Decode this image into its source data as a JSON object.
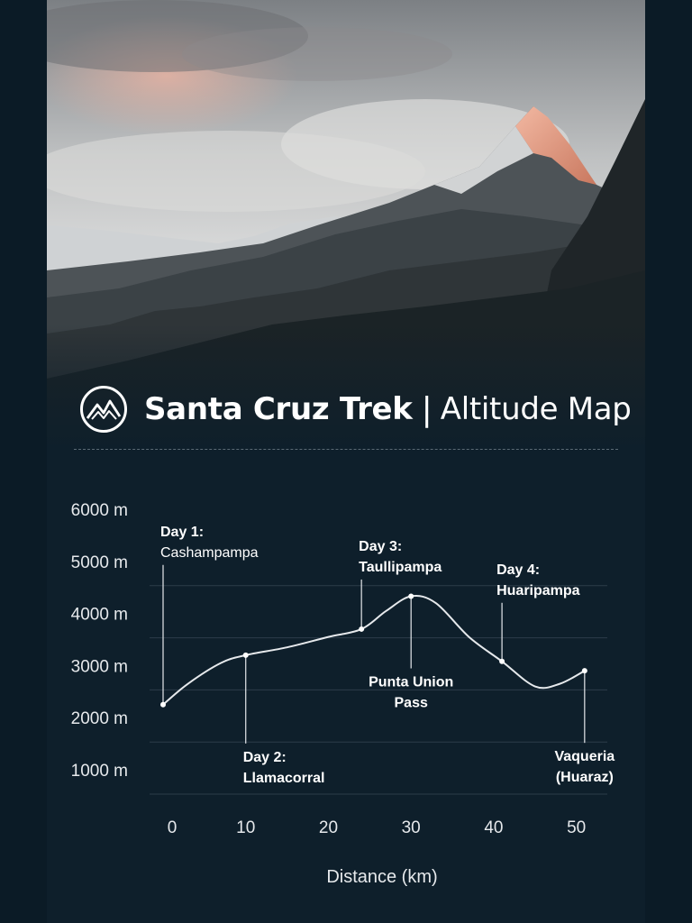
{
  "header": {
    "title_main": "Santa Cruz Trek",
    "separator": "|",
    "title_sub": "Altitude Map",
    "logo_icon": "mountain-logo-icon"
  },
  "colors": {
    "background": "#0e1f2b",
    "line": "#e6e9ec",
    "grid": "#2c3d4a",
    "text": "#e6e9ec",
    "label": "#ffffff"
  },
  "chart_data": {
    "type": "line",
    "xlabel": "Distance (km)",
    "ylabel": "",
    "x_ticks": [
      0,
      10,
      20,
      30,
      40,
      50
    ],
    "y_ticks": [
      "1000 m",
      "2000 m",
      "3000 m",
      "4000 m",
      "5000 m",
      "6000 m"
    ],
    "xlim": [
      0,
      52
    ],
    "ylim": [
      1000,
      6000
    ],
    "grid": true,
    "series": [
      {
        "x": [
          0,
          3,
          7,
          10,
          15,
          20,
          24,
          27,
          30,
          33,
          37,
          41,
          45,
          48,
          51
        ],
        "y": [
          2250,
          2650,
          3050,
          3200,
          3350,
          3550,
          3700,
          4050,
          4330,
          4200,
          3550,
          3080,
          2600,
          2650,
          2900
        ]
      }
    ],
    "annotations": [
      {
        "x": 0,
        "y": 2250,
        "day": "Day 1:",
        "place": "Cashampampa",
        "position": "above"
      },
      {
        "x": 10,
        "y": 3200,
        "day": "Day 2:",
        "place": "Llamacorral",
        "position": "below"
      },
      {
        "x": 24,
        "y": 3700,
        "day": "Day 3:",
        "place": "Taullipampa",
        "position": "above"
      },
      {
        "x": 30,
        "y": 4330,
        "day": "Punta Union",
        "place": "Pass",
        "position": "below"
      },
      {
        "x": 41,
        "y": 3080,
        "day": "Day 4:",
        "place": "Huaripampa",
        "position": "above"
      },
      {
        "x": 51,
        "y": 2900,
        "day": "Vaqueria",
        "place": "(Huaraz)",
        "position": "below"
      }
    ]
  }
}
